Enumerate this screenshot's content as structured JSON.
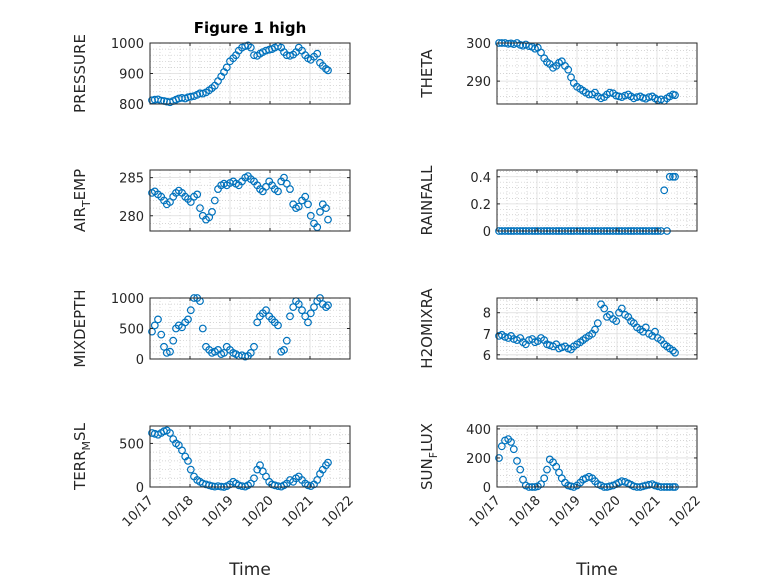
{
  "colors": {
    "marker": "#0072BD",
    "axis": "#262626",
    "grid": "#C8C8C8"
  },
  "chart_data": [
    {
      "type": "scatter",
      "title": "Figure 1 high",
      "ylabel": "PRESSURE",
      "xlim": [
        0,
        5
      ],
      "ylim": [
        800,
        1000
      ],
      "yticks": [
        800,
        900,
        1000
      ],
      "grid": true,
      "minor_grid": true,
      "x": [
        0.05,
        0.12,
        0.2,
        0.28,
        0.35,
        0.42,
        0.5,
        0.58,
        0.65,
        0.72,
        0.8,
        0.88,
        0.95,
        1.02,
        1.1,
        1.18,
        1.25,
        1.32,
        1.4,
        1.48,
        1.55,
        1.62,
        1.7,
        1.78,
        1.85,
        1.92,
        2.0,
        2.08,
        2.15,
        2.22,
        2.3,
        2.38,
        2.45,
        2.52,
        2.6,
        2.68,
        2.75,
        2.82,
        2.9,
        2.98,
        3.05,
        3.12,
        3.2,
        3.28,
        3.35,
        3.42,
        3.5,
        3.58,
        3.65,
        3.72,
        3.8,
        3.88,
        3.95,
        4.02,
        4.1,
        4.18,
        4.25,
        4.32,
        4.4,
        4.45
      ],
      "y": [
        812,
        814,
        815,
        811,
        810,
        808,
        806,
        810,
        814,
        818,
        820,
        818,
        822,
        824,
        826,
        830,
        835,
        834,
        838,
        845,
        852,
        860,
        875,
        890,
        905,
        920,
        940,
        950,
        960,
        975,
        985,
        990,
        992,
        985,
        960,
        958,
        965,
        970,
        975,
        978,
        980,
        985,
        990,
        985,
        970,
        960,
        958,
        962,
        970,
        985,
        975,
        960,
        950,
        945,
        955,
        965,
        935,
        925,
        915,
        910
      ]
    },
    {
      "type": "scatter",
      "ylabel": "THETA",
      "xlim": [
        0,
        5
      ],
      "ylim": [
        284,
        300
      ],
      "yticks": [
        290,
        300
      ],
      "grid": true,
      "minor_grid": true,
      "x": [
        0.05,
        0.12,
        0.2,
        0.28,
        0.35,
        0.42,
        0.5,
        0.58,
        0.65,
        0.72,
        0.8,
        0.88,
        0.95,
        1.02,
        1.1,
        1.18,
        1.25,
        1.32,
        1.4,
        1.48,
        1.55,
        1.62,
        1.7,
        1.78,
        1.85,
        1.92,
        2.0,
        2.08,
        2.15,
        2.22,
        2.3,
        2.38,
        2.45,
        2.52,
        2.6,
        2.68,
        2.75,
        2.82,
        2.9,
        2.98,
        3.05,
        3.12,
        3.2,
        3.28,
        3.35,
        3.42,
        3.5,
        3.58,
        3.65,
        3.72,
        3.8,
        3.88,
        3.95,
        4.02,
        4.1,
        4.18,
        4.25,
        4.32,
        4.4,
        4.45
      ],
      "y": [
        300,
        300,
        300,
        299.8,
        299.9,
        299.7,
        300,
        299.5,
        299.3,
        299.6,
        299.2,
        299,
        298.5,
        298.8,
        297.5,
        296,
        295,
        294.5,
        293.5,
        294,
        294.8,
        295.2,
        294,
        293,
        291,
        289.5,
        288.5,
        288,
        287.5,
        287,
        286.5,
        286.5,
        287,
        286,
        285.5,
        285.8,
        286.5,
        287,
        286.8,
        286.2,
        286,
        285.8,
        286.2,
        286.5,
        286,
        285.5,
        285.8,
        286,
        285.6,
        285.4,
        285.8,
        286,
        285.5,
        285,
        285.2,
        284.8,
        285.5,
        286,
        286.5,
        286.3
      ]
    },
    {
      "type": "scatter",
      "ylabel": "AIR_TEMP",
      "ylabel_base": "AIR",
      "ylabel_sub": "T",
      "ylabel_rest": "EMP",
      "xlim": [
        0,
        5
      ],
      "ylim": [
        278,
        286
      ],
      "yticks": [
        280,
        285
      ],
      "grid": true,
      "minor_grid": true,
      "x": [
        0.05,
        0.12,
        0.2,
        0.28,
        0.35,
        0.42,
        0.5,
        0.58,
        0.65,
        0.72,
        0.8,
        0.88,
        0.95,
        1.02,
        1.1,
        1.18,
        1.25,
        1.32,
        1.4,
        1.48,
        1.55,
        1.62,
        1.7,
        1.78,
        1.85,
        1.92,
        2.0,
        2.08,
        2.15,
        2.22,
        2.3,
        2.38,
        2.45,
        2.52,
        2.6,
        2.68,
        2.75,
        2.82,
        2.9,
        2.98,
        3.05,
        3.12,
        3.2,
        3.28,
        3.35,
        3.42,
        3.5,
        3.58,
        3.65,
        3.72,
        3.8,
        3.88,
        3.95,
        4.02,
        4.1,
        4.18,
        4.25,
        4.32,
        4.4,
        4.45
      ],
      "y": [
        283,
        283.2,
        282.8,
        282.5,
        282,
        281.5,
        281.8,
        282.5,
        283,
        283.3,
        283,
        282.5,
        282.2,
        281.8,
        282.5,
        282.8,
        281,
        280,
        279.5,
        279.8,
        280.5,
        282,
        283.5,
        284,
        284.2,
        284,
        284.3,
        284.5,
        284.2,
        284,
        284.5,
        285,
        285.2,
        284.8,
        284.5,
        284,
        283.5,
        283.2,
        283.8,
        284.5,
        284,
        283.5,
        283.2,
        284.5,
        285,
        284.2,
        283.5,
        281.5,
        281,
        281.2,
        282,
        282.5,
        281.5,
        280,
        279,
        278.5,
        280.5,
        281.5,
        281,
        279.5
      ]
    },
    {
      "type": "scatter",
      "ylabel": "RAINFALL",
      "xlim": [
        0,
        5
      ],
      "ylim": [
        0,
        0.45
      ],
      "yticks": [
        0,
        0.2,
        0.4
      ],
      "grid": true,
      "minor_grid": true,
      "x": [
        0.05,
        0.12,
        0.2,
        0.28,
        0.35,
        0.42,
        0.5,
        0.58,
        0.65,
        0.72,
        0.8,
        0.88,
        0.95,
        1.02,
        1.1,
        1.18,
        1.25,
        1.32,
        1.4,
        1.48,
        1.55,
        1.62,
        1.7,
        1.78,
        1.85,
        1.92,
        2.0,
        2.08,
        2.15,
        2.22,
        2.3,
        2.38,
        2.45,
        2.52,
        2.6,
        2.68,
        2.75,
        2.82,
        2.9,
        2.98,
        3.05,
        3.12,
        3.2,
        3.28,
        3.35,
        3.42,
        3.5,
        3.58,
        3.65,
        3.72,
        3.8,
        3.88,
        3.95,
        4.02,
        4.1,
        4.18,
        4.25,
        4.32,
        4.4,
        4.45
      ],
      "y": [
        0,
        0,
        0,
        0,
        0,
        0,
        0,
        0,
        0,
        0,
        0,
        0,
        0,
        0,
        0,
        0,
        0,
        0,
        0,
        0,
        0,
        0,
        0,
        0,
        0,
        0,
        0,
        0,
        0,
        0,
        0,
        0,
        0,
        0,
        0,
        0,
        0,
        0,
        0,
        0,
        0,
        0,
        0,
        0,
        0,
        0,
        0,
        0,
        0,
        0,
        0,
        0,
        0,
        0,
        0,
        0.3,
        0,
        0.4,
        0.4,
        0.4
      ]
    },
    {
      "type": "scatter",
      "ylabel": "MIXDEPTH",
      "xlim": [
        0,
        5
      ],
      "ylim": [
        0,
        1000
      ],
      "yticks": [
        0,
        500,
        1000
      ],
      "grid": true,
      "minor_grid": true,
      "x": [
        0.05,
        0.12,
        0.2,
        0.28,
        0.35,
        0.42,
        0.5,
        0.58,
        0.65,
        0.72,
        0.8,
        0.88,
        0.95,
        1.02,
        1.1,
        1.18,
        1.25,
        1.32,
        1.4,
        1.48,
        1.55,
        1.62,
        1.7,
        1.78,
        1.85,
        1.92,
        2.0,
        2.08,
        2.15,
        2.22,
        2.3,
        2.38,
        2.45,
        2.52,
        2.6,
        2.68,
        2.75,
        2.82,
        2.9,
        2.98,
        3.05,
        3.12,
        3.2,
        3.28,
        3.35,
        3.42,
        3.5,
        3.58,
        3.65,
        3.72,
        3.8,
        3.88,
        3.95,
        4.02,
        4.1,
        4.18,
        4.25,
        4.32,
        4.4,
        4.45
      ],
      "y": [
        450,
        550,
        650,
        400,
        200,
        100,
        120,
        300,
        500,
        550,
        520,
        600,
        650,
        800,
        1000,
        1050,
        950,
        500,
        200,
        150,
        100,
        120,
        150,
        80,
        100,
        200,
        150,
        100,
        80,
        50,
        60,
        40,
        50,
        100,
        200,
        600,
        700,
        750,
        800,
        700,
        650,
        600,
        550,
        120,
        150,
        300,
        700,
        850,
        950,
        900,
        800,
        700,
        600,
        750,
        850,
        950,
        1000,
        900,
        850,
        880
      ]
    },
    {
      "type": "scatter",
      "ylabel": "H2OMIXRA",
      "xlim": [
        0,
        5
      ],
      "ylim": [
        5.8,
        8.7
      ],
      "yticks": [
        6,
        7,
        8
      ],
      "grid": true,
      "minor_grid": true,
      "x": [
        0.05,
        0.12,
        0.2,
        0.28,
        0.35,
        0.42,
        0.5,
        0.58,
        0.65,
        0.72,
        0.8,
        0.88,
        0.95,
        1.02,
        1.1,
        1.18,
        1.25,
        1.32,
        1.4,
        1.48,
        1.55,
        1.62,
        1.7,
        1.78,
        1.85,
        1.92,
        2.0,
        2.08,
        2.15,
        2.22,
        2.3,
        2.38,
        2.45,
        2.52,
        2.6,
        2.68,
        2.75,
        2.82,
        2.9,
        2.98,
        3.05,
        3.12,
        3.2,
        3.28,
        3.35,
        3.42,
        3.5,
        3.58,
        3.65,
        3.72,
        3.8,
        3.88,
        3.95,
        4.02,
        4.1,
        4.18,
        4.25,
        4.32,
        4.4,
        4.45
      ],
      "y": [
        6.9,
        6.95,
        6.85,
        6.8,
        6.9,
        6.75,
        6.7,
        6.8,
        6.6,
        6.5,
        6.7,
        6.75,
        6.6,
        6.65,
        6.8,
        6.7,
        6.5,
        6.45,
        6.4,
        6.5,
        6.3,
        6.35,
        6.4,
        6.3,
        6.25,
        6.4,
        6.5,
        6.6,
        6.7,
        6.8,
        6.9,
        7.0,
        7.2,
        7.5,
        8.4,
        8.2,
        7.8,
        7.9,
        7.7,
        7.6,
        8.0,
        8.2,
        7.9,
        7.8,
        7.6,
        7.5,
        7.3,
        7.2,
        7.1,
        7.3,
        7.0,
        6.9,
        7.1,
        6.8,
        6.7,
        6.5,
        6.4,
        6.3,
        6.2,
        6.1
      ]
    },
    {
      "type": "scatter",
      "ylabel": "TERR_MSL",
      "ylabel_base": "TERR",
      "ylabel_sub": "M",
      "ylabel_rest": "SL",
      "xlim": [
        0,
        5
      ],
      "ylim": [
        0,
        700
      ],
      "yticks": [
        0,
        500
      ],
      "grid": true,
      "minor_grid": true,
      "x": [
        0.05,
        0.12,
        0.2,
        0.28,
        0.35,
        0.42,
        0.5,
        0.58,
        0.65,
        0.72,
        0.8,
        0.88,
        0.95,
        1.02,
        1.1,
        1.18,
        1.25,
        1.32,
        1.4,
        1.48,
        1.55,
        1.62,
        1.7,
        1.78,
        1.85,
        1.92,
        2.0,
        2.08,
        2.15,
        2.22,
        2.3,
        2.38,
        2.45,
        2.52,
        2.6,
        2.68,
        2.75,
        2.82,
        2.9,
        2.98,
        3.05,
        3.12,
        3.2,
        3.28,
        3.35,
        3.42,
        3.5,
        3.58,
        3.65,
        3.72,
        3.8,
        3.88,
        3.95,
        4.02,
        4.1,
        4.18,
        4.25,
        4.32,
        4.4,
        4.45
      ],
      "y": [
        620,
        610,
        600,
        620,
        640,
        650,
        620,
        550,
        500,
        480,
        420,
        350,
        300,
        200,
        120,
        80,
        60,
        40,
        30,
        20,
        10,
        5,
        10,
        5,
        0,
        10,
        30,
        60,
        40,
        20,
        10,
        5,
        20,
        40,
        100,
        200,
        250,
        180,
        120,
        60,
        30,
        20,
        10,
        5,
        20,
        40,
        80,
        60,
        100,
        120,
        80,
        40,
        20,
        10,
        30,
        80,
        150,
        200,
        250,
        280
      ]
    },
    {
      "type": "scatter",
      "ylabel": "SUN_FLUX",
      "ylabel_base": "SUN",
      "ylabel_sub": "F",
      "ylabel_rest": "LUX",
      "xlim": [
        0,
        5
      ],
      "ylim": [
        0,
        420
      ],
      "yticks": [
        0,
        200,
        400
      ],
      "grid": true,
      "minor_grid": true,
      "x": [
        0.05,
        0.12,
        0.2,
        0.28,
        0.35,
        0.42,
        0.5,
        0.58,
        0.65,
        0.72,
        0.8,
        0.88,
        0.95,
        1.02,
        1.1,
        1.18,
        1.25,
        1.32,
        1.4,
        1.48,
        1.55,
        1.62,
        1.7,
        1.78,
        1.85,
        1.92,
        2.0,
        2.08,
        2.15,
        2.22,
        2.3,
        2.38,
        2.45,
        2.52,
        2.6,
        2.68,
        2.75,
        2.82,
        2.9,
        2.98,
        3.05,
        3.12,
        3.2,
        3.28,
        3.35,
        3.42,
        3.5,
        3.58,
        3.65,
        3.72,
        3.8,
        3.88,
        3.95,
        4.02,
        4.1,
        4.18,
        4.25,
        4.32,
        4.4,
        4.45
      ],
      "y": [
        200,
        280,
        320,
        330,
        310,
        260,
        180,
        120,
        50,
        10,
        0,
        0,
        0,
        5,
        20,
        60,
        120,
        190,
        170,
        140,
        100,
        60,
        30,
        10,
        5,
        0,
        10,
        30,
        50,
        60,
        70,
        60,
        40,
        20,
        10,
        0,
        0,
        5,
        10,
        20,
        30,
        40,
        35,
        25,
        15,
        5,
        0,
        0,
        5,
        10,
        15,
        20,
        10,
        5,
        0,
        0,
        0,
        0,
        0,
        0
      ]
    }
  ],
  "xaxis": {
    "tick_labels": [
      "10/17",
      "10/18",
      "10/19",
      "10/20",
      "10/21",
      "10/22"
    ],
    "label": "Time"
  }
}
